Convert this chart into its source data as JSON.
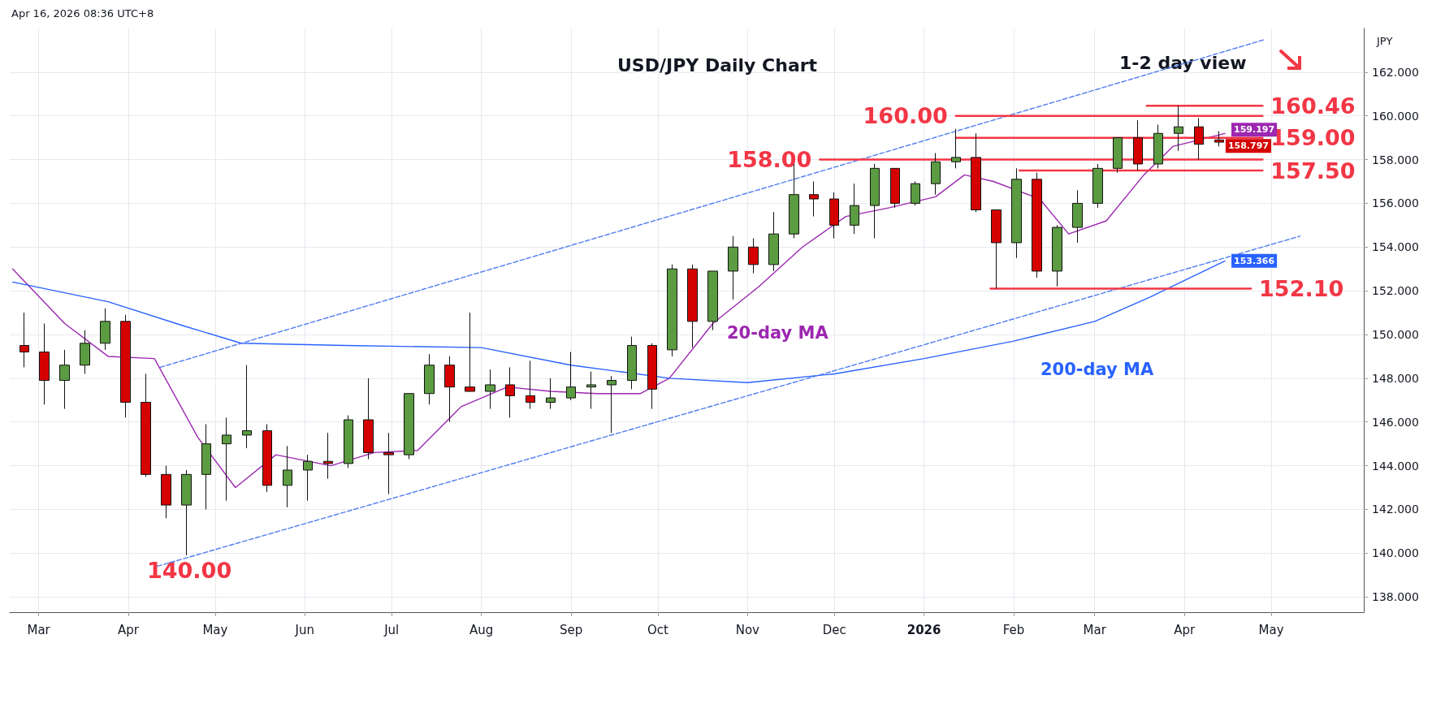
{
  "chart_data": {
    "type": "candlestick",
    "title": "USD/JPY Daily Chart",
    "ylabel": "JPY",
    "x": [
      "2025-02-24",
      "2025-03-03",
      "2025-03-10",
      "2025-03-17",
      "2025-03-24",
      "2025-03-31",
      "2025-04-07",
      "2025-04-14",
      "2025-04-21",
      "2025-04-28",
      "2025-05-05",
      "2025-05-12",
      "2025-05-19",
      "2025-05-26",
      "2025-06-02",
      "2025-06-09",
      "2025-06-16",
      "2025-06-23",
      "2025-06-30",
      "2025-07-07",
      "2025-07-14",
      "2025-07-21",
      "2025-07-28",
      "2025-08-04",
      "2025-08-11",
      "2025-08-18",
      "2025-08-25",
      "2025-09-01",
      "2025-09-08",
      "2025-09-15",
      "2025-09-22",
      "2025-09-29",
      "2025-10-06",
      "2025-10-13",
      "2025-10-20",
      "2025-10-27",
      "2025-11-03",
      "2025-11-10",
      "2025-11-17",
      "2025-11-24",
      "2025-12-01",
      "2025-12-08",
      "2025-12-15",
      "2025-12-22",
      "2025-12-29",
      "2026-01-05",
      "2026-01-12",
      "2026-01-19",
      "2026-01-26",
      "2026-02-02",
      "2026-02-09",
      "2026-02-16",
      "2026-02-23",
      "2026-03-02",
      "2026-03-09",
      "2026-03-16",
      "2026-03-23",
      "2026-03-30",
      "2026-04-06",
      "2026-04-13"
    ],
    "ohlc": [
      [
        149.5,
        151.0,
        148.5,
        149.2
      ],
      [
        149.2,
        150.5,
        146.8,
        147.9
      ],
      [
        147.9,
        149.3,
        146.6,
        148.6
      ],
      [
        148.6,
        150.2,
        148.2,
        149.6
      ],
      [
        149.6,
        151.2,
        149.3,
        150.6
      ],
      [
        150.6,
        150.9,
        146.2,
        146.9
      ],
      [
        146.9,
        148.2,
        143.5,
        143.6
      ],
      [
        143.6,
        144.0,
        141.6,
        142.2
      ],
      [
        142.2,
        143.8,
        139.9,
        143.6
      ],
      [
        143.6,
        145.9,
        142.0,
        145.0
      ],
      [
        145.0,
        146.2,
        142.4,
        145.4
      ],
      [
        145.4,
        148.6,
        144.8,
        145.6
      ],
      [
        145.6,
        145.9,
        142.8,
        143.1
      ],
      [
        143.1,
        144.9,
        142.1,
        143.8
      ],
      [
        143.8,
        144.5,
        142.4,
        144.2
      ],
      [
        144.2,
        145.5,
        143.4,
        144.1
      ],
      [
        144.1,
        146.3,
        143.9,
        146.1
      ],
      [
        146.1,
        148.0,
        144.3,
        144.6
      ],
      [
        144.6,
        145.5,
        142.7,
        144.5
      ],
      [
        144.5,
        147.3,
        144.3,
        147.3
      ],
      [
        147.3,
        149.1,
        146.8,
        148.6
      ],
      [
        148.6,
        149.0,
        146.0,
        147.6
      ],
      [
        147.6,
        151.0,
        147.4,
        147.4
      ],
      [
        147.4,
        148.4,
        146.6,
        147.7
      ],
      [
        147.7,
        148.5,
        146.2,
        147.2
      ],
      [
        147.2,
        148.8,
        146.6,
        146.9
      ],
      [
        146.9,
        148.0,
        146.6,
        147.1
      ],
      [
        147.1,
        149.2,
        147.0,
        147.6
      ],
      [
        147.6,
        148.3,
        146.6,
        147.7
      ],
      [
        147.7,
        148.1,
        145.5,
        147.9
      ],
      [
        147.9,
        149.9,
        147.5,
        149.5
      ],
      [
        149.5,
        149.6,
        146.6,
        147.5
      ],
      [
        149.3,
        153.2,
        149.0,
        153.0
      ],
      [
        153.0,
        153.2,
        149.4,
        150.6
      ],
      [
        150.6,
        152.9,
        150.2,
        152.9
      ],
      [
        152.9,
        154.5,
        151.6,
        154.0
      ],
      [
        154.0,
        154.4,
        152.8,
        153.2
      ],
      [
        153.2,
        155.6,
        152.9,
        154.6
      ],
      [
        154.6,
        157.8,
        154.4,
        156.4
      ],
      [
        156.4,
        157.0,
        155.4,
        156.2
      ],
      [
        156.2,
        156.5,
        154.4,
        155.0
      ],
      [
        155.0,
        156.9,
        154.6,
        155.9
      ],
      [
        155.9,
        157.8,
        154.4,
        157.6
      ],
      [
        157.6,
        157.6,
        155.8,
        156.0
      ],
      [
        156.0,
        157.0,
        155.9,
        156.9
      ],
      [
        156.9,
        158.3,
        156.4,
        157.9
      ],
      [
        157.9,
        159.4,
        157.6,
        158.1
      ],
      [
        158.1,
        159.2,
        155.6,
        155.7
      ],
      [
        155.7,
        155.7,
        152.1,
        154.2
      ],
      [
        154.2,
        157.6,
        153.5,
        157.1
      ],
      [
        157.1,
        157.4,
        152.6,
        152.9
      ],
      [
        152.9,
        155.0,
        152.2,
        154.9
      ],
      [
        154.9,
        156.6,
        154.2,
        156.0
      ],
      [
        156.0,
        157.8,
        155.8,
        157.6
      ],
      [
        157.6,
        159.0,
        157.4,
        159.0
      ],
      [
        159.0,
        159.8,
        157.5,
        157.8
      ],
      [
        157.8,
        159.6,
        157.6,
        159.2
      ],
      [
        159.2,
        160.46,
        158.4,
        159.5
      ],
      [
        159.5,
        159.9,
        158.0,
        158.7
      ],
      [
        158.9,
        159.3,
        158.6,
        158.797
      ]
    ],
    "colors": [
      "#d50000",
      "#d50000",
      "#5b9b42",
      "#5b9b42",
      "#5b9b42",
      "#d50000",
      "#d50000",
      "#d50000",
      "#5b9b42",
      "#5b9b42",
      "#5b9b42",
      "#5b9b42",
      "#d50000",
      "#5b9b42",
      "#5b9b42",
      "#d50000",
      "#5b9b42",
      "#d50000",
      "#d50000",
      "#5b9b42",
      "#5b9b42",
      "#d50000",
      "#d50000",
      "#5b9b42",
      "#d50000",
      "#d50000",
      "#5b9b42",
      "#5b9b42",
      "#5b9b42",
      "#5b9b42",
      "#5b9b42",
      "#d50000",
      "#5b9b42",
      "#d50000",
      "#5b9b42",
      "#5b9b42",
      "#d50000",
      "#5b9b42",
      "#5b9b42",
      "#d50000",
      "#d50000",
      "#5b9b42",
      "#5b9b42",
      "#d50000",
      "#5b9b42",
      "#5b9b42",
      "#5b9b42",
      "#d50000",
      "#d50000",
      "#5b9b42",
      "#d50000",
      "#5b9b42",
      "#5b9b42",
      "#5b9b42",
      "#5b9b42",
      "#d50000",
      "#5b9b42",
      "#5b9b42",
      "#d50000",
      "#d50000"
    ],
    "value_labels": [
      null,
      null,
      null,
      null,
      null,
      null,
      null,
      null,
      null,
      null,
      null,
      null,
      null,
      null,
      null,
      null,
      null,
      null,
      null,
      null,
      null,
      null,
      null,
      null,
      null,
      null,
      null,
      null,
      null,
      null,
      null,
      null,
      null,
      null,
      null,
      null,
      null,
      null,
      null,
      null,
      null,
      null,
      null,
      null,
      null,
      null,
      null,
      null,
      null,
      null,
      null,
      null,
      null,
      null,
      null,
      null,
      null,
      null,
      null,
      "158.797"
    ],
    "series": [
      {
        "type": "line",
        "color": "#9c27b0",
        "x": [
          "2025-02-20",
          "2025-03-10",
          "2025-03-25",
          "2025-04-10",
          "2025-04-25",
          "2025-05-08",
          "2025-05-22",
          "2025-06-10",
          "2025-06-25",
          "2025-07-10",
          "2025-07-25",
          "2025-08-10",
          "2025-08-25",
          "2025-09-10",
          "2025-09-25",
          "2025-10-05",
          "2025-10-20",
          "2025-11-05",
          "2025-11-20",
          "2025-12-05",
          "2025-12-20",
          "2026-01-05",
          "2026-01-15",
          "2026-01-25",
          "2026-02-10",
          "2026-02-20",
          "2026-03-05",
          "2026-03-18",
          "2026-03-28",
          "2026-04-15"
        ],
        "values": [
          153.0,
          150.5,
          149.0,
          148.9,
          145.3,
          143.0,
          144.5,
          144.0,
          144.6,
          144.7,
          146.7,
          147.6,
          147.4,
          147.3,
          147.3,
          148.0,
          150.5,
          152.2,
          154.0,
          155.4,
          155.8,
          156.3,
          157.3,
          157.0,
          156.2,
          154.6,
          155.2,
          157.3,
          158.6,
          159.197
        ],
        "value_labels": [
          null,
          null,
          null,
          null,
          null,
          null,
          null,
          null,
          null,
          null,
          null,
          null,
          null,
          null,
          null,
          null,
          null,
          null,
          null,
          null,
          null,
          null,
          null,
          null,
          null,
          null,
          null,
          null,
          null,
          "159.197"
        ]
      },
      {
        "type": "line",
        "color": "#2962ff",
        "x": [
          "2025-02-20",
          "2025-03-25",
          "2025-04-20",
          "2025-05-10",
          "2025-06-15",
          "2025-08-01",
          "2025-09-01",
          "2025-10-05",
          "2025-11-01",
          "2025-12-01",
          "2026-01-01",
          "2026-02-01",
          "2026-03-01",
          "2026-03-20",
          "2026-04-15"
        ],
        "values": [
          152.4,
          151.5,
          150.4,
          149.6,
          149.5,
          149.4,
          148.6,
          148.0,
          147.8,
          148.2,
          148.9,
          149.7,
          150.6,
          151.7,
          153.366
        ],
        "value_labels": [
          null,
          null,
          null,
          null,
          null,
          null,
          null,
          null,
          null,
          null,
          null,
          null,
          null,
          null,
          "153.366"
        ]
      },
      {
        "type": "line",
        "color": "#4f7df0",
        "line_style": "dashed",
        "x": [
          "2025-04-12",
          "2026-04-29"
        ],
        "values": [
          148.5,
          163.5
        ]
      },
      {
        "type": "line",
        "color": "#4f7df0",
        "line_style": "dashed",
        "x": [
          "2025-04-11",
          "2026-05-11"
        ],
        "values": [
          139.4,
          154.5
        ]
      },
      {
        "type": "line",
        "name": "160.00",
        "color": "#f23645",
        "x": [
          "2026-04-28",
          "2026-01-12"
        ],
        "values": [
          160.0,
          160.0
        ]
      },
      {
        "type": "line",
        "name": "158.00",
        "color": "#f23645",
        "x": [
          "2026-04-28",
          "2025-11-26"
        ],
        "values": [
          158.0,
          158.0
        ]
      },
      {
        "type": "line",
        "name": "160.46",
        "color": "#f23645",
        "x": [
          "2026-03-19",
          "2026-04-28"
        ],
        "values": [
          160.46,
          160.46
        ]
      },
      {
        "type": "line",
        "name": "159.00",
        "color": "#f23645",
        "x": [
          "2026-01-12",
          "2026-04-28"
        ],
        "values": [
          159.0,
          159.0
        ]
      },
      {
        "type": "line",
        "name": "157.50",
        "color": "#f23645",
        "x": [
          "2026-02-03",
          "2026-04-28"
        ],
        "values": [
          157.5,
          157.5
        ]
      },
      {
        "type": "line",
        "name": "152.10",
        "color": "#f23645",
        "x": [
          "2026-01-24",
          "2026-04-24"
        ],
        "values": [
          152.1,
          152.1
        ]
      }
    ],
    "annotations": [
      "Apr 16, 2026 08:36 UTC+8",
      "1-2 day view",
      "140.00",
      "20-day MA",
      "200-day MA"
    ],
    "xlim": [
      "2025-02-19",
      "2026-06-02"
    ],
    "xticks": [
      {
        "value": "2025-03-01",
        "label": "Mar"
      },
      {
        "value": "2025-04-01",
        "label": "Apr"
      },
      {
        "value": "2025-05-01",
        "label": "May"
      },
      {
        "value": "2025-06-01",
        "label": "Jun"
      },
      {
        "value": "2025-07-01",
        "label": "Jul"
      },
      {
        "value": "2025-08-01",
        "label": "Aug"
      },
      {
        "value": "2025-09-01",
        "label": "Sep"
      },
      {
        "value": "2025-10-01",
        "label": "Oct"
      },
      {
        "value": "2025-11-01",
        "label": "Nov"
      },
      {
        "value": "2025-12-01",
        "label": "Dec"
      },
      {
        "value": "2026-01-01",
        "label": "2026"
      },
      {
        "value": "2026-02-01",
        "label": "Feb"
      },
      {
        "value": "2026-03-01",
        "label": "Mar"
      },
      {
        "value": "2026-04-01",
        "label": "Apr"
      },
      {
        "value": "2026-05-01",
        "label": "May"
      }
    ],
    "ylim": [
      137.3,
      164
    ],
    "yticks": [
      {
        "value": 138,
        "label": "138.000"
      },
      {
        "value": 140,
        "label": "140.000"
      },
      {
        "value": 142,
        "label": "142.000"
      },
      {
        "value": 144,
        "label": "144.000"
      },
      {
        "value": 146,
        "label": "146.000"
      },
      {
        "value": 148,
        "label": "148.000"
      },
      {
        "value": 150,
        "label": "150.000"
      },
      {
        "value": 152,
        "label": "152.000"
      },
      {
        "value": 154,
        "label": "154.000"
      },
      {
        "value": 156,
        "label": "156.000"
      },
      {
        "value": 158,
        "label": "158.000"
      },
      {
        "value": 160,
        "label": "160.000"
      },
      {
        "value": 162,
        "label": "162.000"
      }
    ],
    "grid": true
  }
}
